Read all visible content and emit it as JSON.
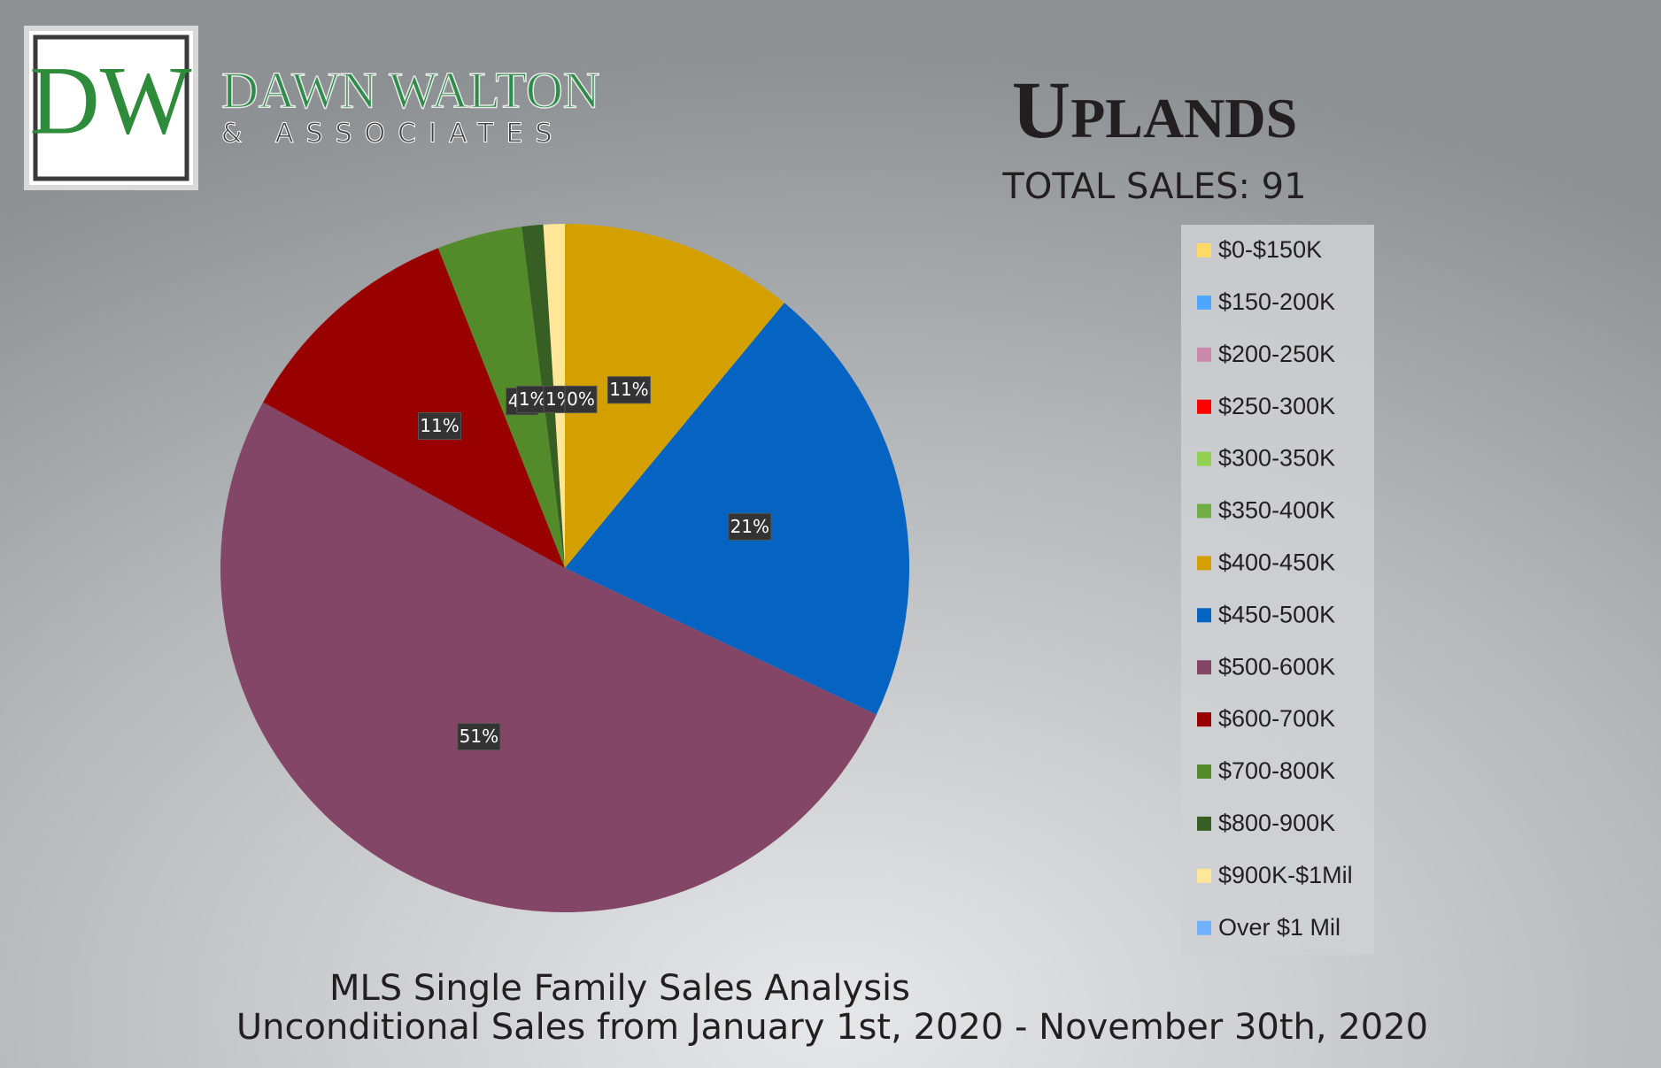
{
  "logo": {
    "monogram": "DW",
    "name": "DAWN WALTON",
    "tagline": "& ASSOCIATES"
  },
  "chart_data": {
    "type": "pie",
    "title": "Uplands",
    "subtitle": "TOTAL SALES: 91",
    "footer": [
      "MLS Single Family Sales Analysis",
      "Unconditional Sales from January 1st, 2020 - November 30th, 2020"
    ],
    "categories": [
      "$0-$150K",
      "$150-200K",
      "$200-250K",
      "$250-300K",
      "$300-350K",
      "$350-400K",
      "$400-450K",
      "$450-500K",
      "$500-600K",
      "$600-700K",
      "$700-800K",
      "$800-900K",
      "$900K-$1Mil",
      "Over $1 Mil"
    ],
    "values": [
      0,
      0,
      0,
      0,
      0,
      0,
      11,
      21,
      51,
      11,
      4,
      1,
      1,
      0
    ],
    "value_labels": [
      null,
      null,
      null,
      null,
      null,
      null,
      "11%",
      "21%",
      "51%",
      "11%",
      "4%",
      "1%",
      "1%",
      "0%"
    ],
    "colors": [
      "#ffd966",
      "#4da6ff",
      "#cc88aa",
      "#ff0000",
      "#92d050",
      "#70ad47",
      "#d4a000",
      "#0563c1",
      "#844666",
      "#990000",
      "#548b2a",
      "#375f23",
      "#ffe699",
      "#6fb0ff"
    ],
    "legend": "right"
  }
}
